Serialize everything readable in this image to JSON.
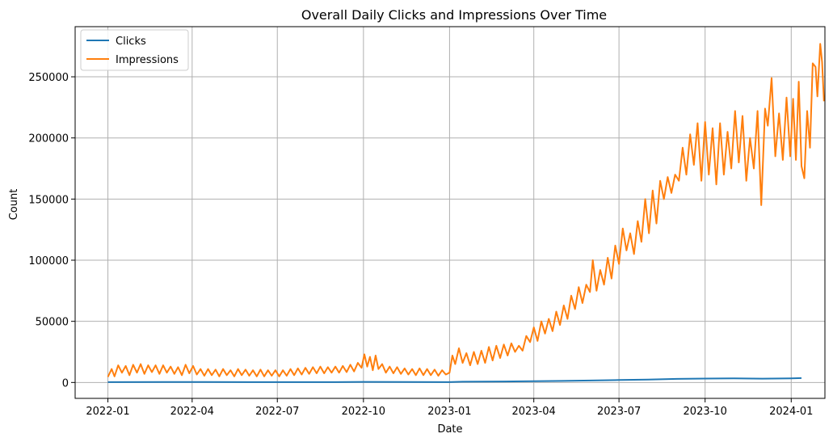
{
  "chart_data": {
    "type": "line",
    "title": "Overall Daily Clicks and Impressions Over Time",
    "xlabel": "Date",
    "ylabel": "Count",
    "xlim": [
      "2021-11-27",
      "2024-02-06"
    ],
    "ylim": [
      -13000,
      291000
    ],
    "x_ticks": [
      "2022-01",
      "2022-04",
      "2022-07",
      "2022-10",
      "2023-01",
      "2023-04",
      "2023-07",
      "2023-10",
      "2024-01"
    ],
    "y_ticks": [
      0,
      50000,
      100000,
      150000,
      200000,
      250000
    ],
    "grid": true,
    "legend_position": "top-left",
    "series": [
      {
        "name": "Clicks",
        "color": "#1f77b4",
        "points": [
          [
            "2022-01-01",
            300
          ],
          [
            "2022-03-01",
            400
          ],
          [
            "2022-06-01",
            300
          ],
          [
            "2022-09-01",
            300
          ],
          [
            "2022-10-01",
            500
          ],
          [
            "2022-12-31",
            300
          ],
          [
            "2023-01-15",
            600
          ],
          [
            "2023-03-01",
            800
          ],
          [
            "2023-04-01",
            1000
          ],
          [
            "2023-05-01",
            1300
          ],
          [
            "2023-06-01",
            1600
          ],
          [
            "2023-07-01",
            2000
          ],
          [
            "2023-08-01",
            2400
          ],
          [
            "2023-09-01",
            2900
          ],
          [
            "2023-10-01",
            3200
          ],
          [
            "2023-11-01",
            3300
          ],
          [
            "2023-12-01",
            3100
          ],
          [
            "2024-01-01",
            3400
          ],
          [
            "2024-01-12",
            3600
          ]
        ]
      },
      {
        "name": "Impressions",
        "color": "#ff7f0e",
        "points": [
          [
            "2022-01-01",
            4500
          ],
          [
            "2022-01-05",
            11000
          ],
          [
            "2022-01-08",
            5000
          ],
          [
            "2022-01-12",
            14000
          ],
          [
            "2022-01-16",
            8000
          ],
          [
            "2022-01-20",
            13500
          ],
          [
            "2022-01-24",
            6000
          ],
          [
            "2022-01-28",
            14500
          ],
          [
            "2022-02-01",
            8000
          ],
          [
            "2022-02-05",
            15000
          ],
          [
            "2022-02-09",
            7000
          ],
          [
            "2022-02-13",
            14000
          ],
          [
            "2022-02-17",
            8500
          ],
          [
            "2022-02-21",
            14000
          ],
          [
            "2022-02-25",
            7000
          ],
          [
            "2022-03-01",
            14000
          ],
          [
            "2022-03-05",
            8000
          ],
          [
            "2022-03-09",
            13000
          ],
          [
            "2022-03-13",
            7000
          ],
          [
            "2022-03-17",
            12500
          ],
          [
            "2022-03-21",
            6000
          ],
          [
            "2022-03-25",
            14500
          ],
          [
            "2022-03-29",
            7500
          ],
          [
            "2022-04-02",
            13500
          ],
          [
            "2022-04-06",
            6500
          ],
          [
            "2022-04-10",
            11000
          ],
          [
            "2022-04-14",
            5500
          ],
          [
            "2022-04-18",
            11000
          ],
          [
            "2022-04-22",
            6000
          ],
          [
            "2022-04-26",
            10500
          ],
          [
            "2022-04-30",
            5000
          ],
          [
            "2022-05-04",
            11000
          ],
          [
            "2022-05-08",
            6000
          ],
          [
            "2022-05-12",
            10000
          ],
          [
            "2022-05-16",
            5000
          ],
          [
            "2022-05-20",
            11000
          ],
          [
            "2022-05-24",
            6000
          ],
          [
            "2022-05-28",
            10500
          ],
          [
            "2022-06-01",
            5500
          ],
          [
            "2022-06-05",
            10000
          ],
          [
            "2022-06-09",
            5000
          ],
          [
            "2022-06-13",
            10500
          ],
          [
            "2022-06-17",
            5000
          ],
          [
            "2022-06-21",
            10000
          ],
          [
            "2022-06-25",
            5500
          ],
          [
            "2022-06-29",
            10000
          ],
          [
            "2022-07-03",
            5000
          ],
          [
            "2022-07-07",
            10000
          ],
          [
            "2022-07-11",
            5500
          ],
          [
            "2022-07-15",
            11000
          ],
          [
            "2022-07-19",
            6000
          ],
          [
            "2022-07-23",
            11500
          ],
          [
            "2022-07-27",
            6500
          ],
          [
            "2022-07-31",
            12000
          ],
          [
            "2022-08-04",
            7000
          ],
          [
            "2022-08-08",
            12500
          ],
          [
            "2022-08-12",
            7500
          ],
          [
            "2022-08-16",
            13000
          ],
          [
            "2022-08-20",
            7500
          ],
          [
            "2022-08-24",
            12500
          ],
          [
            "2022-08-28",
            8000
          ],
          [
            "2022-09-01",
            13000
          ],
          [
            "2022-09-05",
            8000
          ],
          [
            "2022-09-09",
            13500
          ],
          [
            "2022-09-13",
            8500
          ],
          [
            "2022-09-17",
            14500
          ],
          [
            "2022-09-21",
            9000
          ],
          [
            "2022-09-25",
            16000
          ],
          [
            "2022-09-29",
            12000
          ],
          [
            "2022-10-02",
            23000
          ],
          [
            "2022-10-05",
            13000
          ],
          [
            "2022-10-08",
            21000
          ],
          [
            "2022-10-11",
            10000
          ],
          [
            "2022-10-14",
            22000
          ],
          [
            "2022-10-17",
            11000
          ],
          [
            "2022-10-21",
            15000
          ],
          [
            "2022-10-25",
            8000
          ],
          [
            "2022-10-29",
            13000
          ],
          [
            "2022-11-02",
            7500
          ],
          [
            "2022-11-06",
            12500
          ],
          [
            "2022-11-10",
            7000
          ],
          [
            "2022-11-14",
            11500
          ],
          [
            "2022-11-18",
            6500
          ],
          [
            "2022-11-22",
            11000
          ],
          [
            "2022-11-26",
            6000
          ],
          [
            "2022-11-30",
            11500
          ],
          [
            "2022-12-04",
            6000
          ],
          [
            "2022-12-08",
            11000
          ],
          [
            "2022-12-12",
            6000
          ],
          [
            "2022-12-16",
            10500
          ],
          [
            "2022-12-20",
            5500
          ],
          [
            "2022-12-24",
            10000
          ],
          [
            "2022-12-28",
            6500
          ],
          [
            "2023-01-01",
            8000
          ],
          [
            "2023-01-04",
            22000
          ],
          [
            "2023-01-07",
            15000
          ],
          [
            "2023-01-11",
            28000
          ],
          [
            "2023-01-15",
            16000
          ],
          [
            "2023-01-19",
            24000
          ],
          [
            "2023-01-23",
            14000
          ],
          [
            "2023-01-27",
            25000
          ],
          [
            "2023-01-31",
            15000
          ],
          [
            "2023-02-04",
            26000
          ],
          [
            "2023-02-08",
            16000
          ],
          [
            "2023-02-12",
            29000
          ],
          [
            "2023-02-16",
            18000
          ],
          [
            "2023-02-20",
            30000
          ],
          [
            "2023-02-24",
            20000
          ],
          [
            "2023-02-28",
            31000
          ],
          [
            "2023-03-04",
            22000
          ],
          [
            "2023-03-08",
            32000
          ],
          [
            "2023-03-12",
            25000
          ],
          [
            "2023-03-16",
            30000
          ],
          [
            "2023-03-20",
            26000
          ],
          [
            "2023-03-24",
            38000
          ],
          [
            "2023-03-28",
            33000
          ],
          [
            "2023-04-01",
            45000
          ],
          [
            "2023-04-05",
            34000
          ],
          [
            "2023-04-09",
            50000
          ],
          [
            "2023-04-13",
            40000
          ],
          [
            "2023-04-17",
            52000
          ],
          [
            "2023-04-21",
            42000
          ],
          [
            "2023-04-25",
            58000
          ],
          [
            "2023-04-29",
            47000
          ],
          [
            "2023-05-03",
            63000
          ],
          [
            "2023-05-07",
            52000
          ],
          [
            "2023-05-11",
            71000
          ],
          [
            "2023-05-15",
            60000
          ],
          [
            "2023-05-19",
            78000
          ],
          [
            "2023-05-23",
            65000
          ],
          [
            "2023-05-27",
            80000
          ],
          [
            "2023-05-31",
            74000
          ],
          [
            "2023-06-03",
            100000
          ],
          [
            "2023-06-07",
            75000
          ],
          [
            "2023-06-11",
            92000
          ],
          [
            "2023-06-15",
            80000
          ],
          [
            "2023-06-19",
            102000
          ],
          [
            "2023-06-23",
            85000
          ],
          [
            "2023-06-27",
            112000
          ],
          [
            "2023-07-01",
            97000
          ],
          [
            "2023-07-05",
            126000
          ],
          [
            "2023-07-09",
            108000
          ],
          [
            "2023-07-13",
            122000
          ],
          [
            "2023-07-17",
            105000
          ],
          [
            "2023-07-21",
            132000
          ],
          [
            "2023-07-25",
            115000
          ],
          [
            "2023-07-29",
            150000
          ],
          [
            "2023-08-02",
            122000
          ],
          [
            "2023-08-06",
            157000
          ],
          [
            "2023-08-10",
            130000
          ],
          [
            "2023-08-14",
            165000
          ],
          [
            "2023-08-18",
            150000
          ],
          [
            "2023-08-22",
            168000
          ],
          [
            "2023-08-26",
            155000
          ],
          [
            "2023-08-30",
            170000
          ],
          [
            "2023-09-03",
            165000
          ],
          [
            "2023-09-07",
            192000
          ],
          [
            "2023-09-11",
            170000
          ],
          [
            "2023-09-15",
            203000
          ],
          [
            "2023-09-19",
            178000
          ],
          [
            "2023-09-23",
            212000
          ],
          [
            "2023-09-27",
            165000
          ],
          [
            "2023-10-01",
            213000
          ],
          [
            "2023-10-05",
            170000
          ],
          [
            "2023-10-09",
            208000
          ],
          [
            "2023-10-13",
            162000
          ],
          [
            "2023-10-17",
            212000
          ],
          [
            "2023-10-21",
            170000
          ],
          [
            "2023-10-25",
            205000
          ],
          [
            "2023-10-29",
            175000
          ],
          [
            "2023-11-02",
            222000
          ],
          [
            "2023-11-06",
            180000
          ],
          [
            "2023-11-10",
            218000
          ],
          [
            "2023-11-14",
            165000
          ],
          [
            "2023-11-18",
            200000
          ],
          [
            "2023-11-22",
            175000
          ],
          [
            "2023-11-26",
            222000
          ],
          [
            "2023-11-30",
            145000
          ],
          [
            "2023-12-04",
            224000
          ],
          [
            "2023-12-07",
            210000
          ],
          [
            "2023-12-11",
            249000
          ],
          [
            "2023-12-15",
            185000
          ],
          [
            "2023-12-19",
            220000
          ],
          [
            "2023-12-23",
            182000
          ],
          [
            "2023-12-27",
            233000
          ],
          [
            "2023-12-31",
            185000
          ],
          [
            "2024-01-03",
            232000
          ],
          [
            "2024-01-06",
            182000
          ],
          [
            "2024-01-09",
            246000
          ],
          [
            "2024-01-12",
            177000
          ],
          [
            "2024-01-15",
            167000
          ],
          [
            "2024-01-18",
            222000
          ],
          [
            "2024-01-21",
            192000
          ],
          [
            "2024-01-24",
            261000
          ],
          [
            "2024-01-27",
            258000
          ],
          [
            "2024-01-29",
            234000
          ],
          [
            "2024-02-01",
            277000
          ],
          [
            "2024-02-03",
            262000
          ],
          [
            "2024-02-05",
            230000
          ]
        ]
      }
    ]
  }
}
